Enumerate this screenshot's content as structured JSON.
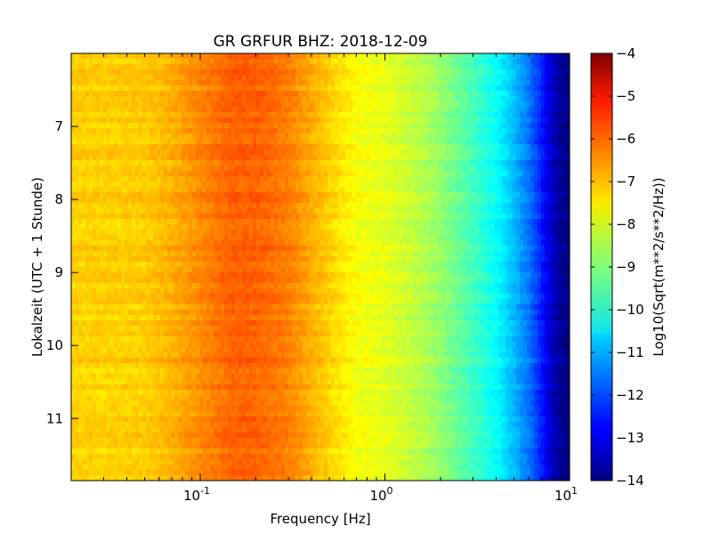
{
  "chart_data": {
    "type": "heatmap",
    "title": "GR GRFUR BHZ: 2018-12-09",
    "xlabel": "Frequency [Hz]",
    "ylabel": "Lokalzeit (UTC + 1 Stunde)",
    "xscale": "log",
    "xlim": [
      0.02,
      10
    ],
    "xticks": [
      {
        "value": 0.1,
        "base": "10",
        "exp": "-1"
      },
      {
        "value": 1,
        "base": "10",
        "exp": "0"
      },
      {
        "value": 10,
        "base": "10",
        "exp": "1"
      }
    ],
    "ylim": [
      6.0,
      11.85
    ],
    "y_inverted": true,
    "yticks": [
      7,
      8,
      9,
      10,
      11
    ],
    "colorbar": {
      "label": "Log10(Sqrt(m**2/s**2/Hz))",
      "range": [
        -14,
        -4
      ],
      "ticks": [
        -4,
        -5,
        -6,
        -7,
        -8,
        -9,
        -10,
        -11,
        -12,
        -13,
        -14
      ],
      "colormap": "jet"
    },
    "profile": {
      "frequency_hz": [
        0.02,
        0.03,
        0.05,
        0.07,
        0.1,
        0.15,
        0.2,
        0.3,
        0.5,
        0.7,
        1.0,
        1.5,
        2,
        3,
        4,
        5,
        6,
        7,
        8,
        9,
        10
      ],
      "value_log10": [
        -7.3,
        -7.3,
        -7.25,
        -7.0,
        -6.6,
        -6.2,
        -6.2,
        -6.5,
        -7.3,
        -7.8,
        -8.0,
        -8.4,
        -8.8,
        -9.6,
        -10.2,
        -10.9,
        -11.6,
        -12.4,
        -13.3,
        -13.8,
        -14.0
      ]
    }
  }
}
